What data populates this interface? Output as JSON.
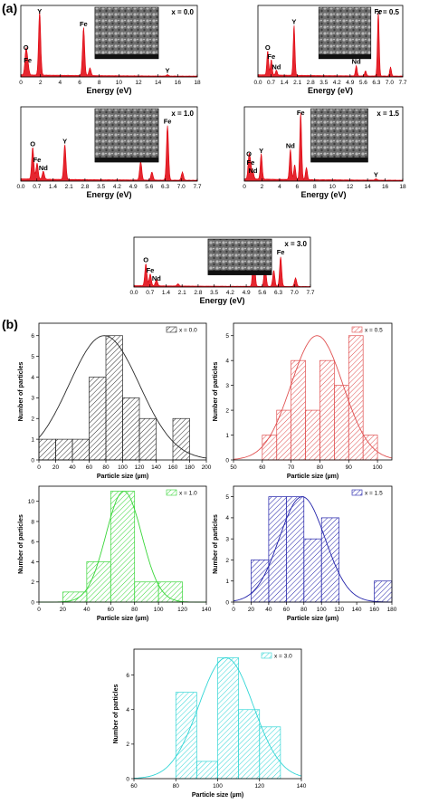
{
  "panel_labels": {
    "a": "(a)",
    "b": "(b)"
  },
  "colors": {
    "edx": "#e0000b",
    "hist": [
      "#2a2a2a",
      "#e05050",
      "#39d639",
      "#2222aa",
      "#33d6d6"
    ]
  },
  "chart_data": [
    {
      "type": "line",
      "panel": "a",
      "legend": "x = 0.0",
      "xlabel": "Energy (eV)",
      "xlim": [
        0,
        18
      ],
      "xticks": [
        0,
        2,
        4,
        6,
        8,
        10,
        12,
        14,
        16,
        18
      ],
      "xticklabels": [
        "0",
        "2",
        "4",
        "6",
        "8",
        "10",
        "12",
        "14",
        "16",
        "18"
      ],
      "peaks": [
        [
          0.52,
          0.38,
          "O"
        ],
        [
          0.71,
          0.18,
          "Fe"
        ],
        [
          1.92,
          1.0,
          "Y"
        ],
        [
          6.4,
          0.75,
          "Fe"
        ],
        [
          7.05,
          0.12,
          ""
        ],
        [
          14.96,
          0.02,
          "Y"
        ]
      ],
      "inset": "SEM micrograph"
    },
    {
      "type": "line",
      "panel": "a",
      "legend": "x = 0.5",
      "xlabel": "Energy (eV)",
      "xlim": [
        0,
        7.7
      ],
      "xticks": [
        0.0,
        0.7,
        1.4,
        2.1,
        2.8,
        3.5,
        4.2,
        4.9,
        5.6,
        6.3,
        7.0,
        7.7
      ],
      "xticklabels": [
        "0.0",
        "0.7",
        "1.4",
        "2.1",
        "2.8",
        "3.5",
        "4.2",
        "4.9",
        "5.6",
        "6.3",
        "7.0",
        "7.7"
      ],
      "peaks": [
        [
          0.52,
          0.38,
          "O"
        ],
        [
          0.71,
          0.24,
          "Fe"
        ],
        [
          0.98,
          0.08,
          "Nd"
        ],
        [
          1.92,
          0.78,
          "Y"
        ],
        [
          5.23,
          0.16,
          "Nd"
        ],
        [
          5.72,
          0.08,
          ""
        ],
        [
          6.4,
          1.0,
          "Fe"
        ],
        [
          7.05,
          0.14,
          ""
        ]
      ],
      "inset": "SEM micrograph"
    },
    {
      "type": "line",
      "panel": "a",
      "legend": "x = 1.0",
      "xlabel": "Energy (eV)",
      "xlim": [
        0,
        7.7
      ],
      "xticks": [
        0.0,
        0.7,
        1.4,
        2.1,
        2.8,
        3.5,
        4.2,
        4.9,
        5.6,
        6.3,
        7.0,
        7.7
      ],
      "xticklabels": [
        "0.0",
        "0.7",
        "1.4",
        "2.1",
        "2.8",
        "3.5",
        "4.2",
        "4.9",
        "5.6",
        "6.3",
        "7.0",
        "7.7"
      ],
      "peaks": [
        [
          0.52,
          0.48,
          "O"
        ],
        [
          0.71,
          0.24,
          "Fe"
        ],
        [
          0.98,
          0.12,
          "Nd"
        ],
        [
          1.92,
          0.52,
          "Y"
        ],
        [
          5.23,
          0.28,
          "Nd"
        ],
        [
          5.72,
          0.12,
          ""
        ],
        [
          6.4,
          0.82,
          "Fe"
        ],
        [
          7.05,
          0.12,
          ""
        ]
      ],
      "inset": "SEM micrograph"
    },
    {
      "type": "line",
      "panel": "a",
      "legend": "x = 1.5",
      "xlabel": "Energy (eV)",
      "xlim": [
        0,
        18
      ],
      "xticks": [
        0,
        2,
        4,
        6,
        8,
        10,
        12,
        14,
        16,
        18
      ],
      "xticklabels": [
        "0",
        "2",
        "4",
        "6",
        "8",
        "10",
        "12",
        "14",
        "16",
        "18"
      ],
      "peaks": [
        [
          0.52,
          0.33,
          "O"
        ],
        [
          0.71,
          0.2,
          "Fe"
        ],
        [
          0.98,
          0.1,
          "Nd"
        ],
        [
          1.92,
          0.38,
          "Y"
        ],
        [
          5.23,
          0.45,
          "Nd"
        ],
        [
          5.72,
          0.22,
          ""
        ],
        [
          6.4,
          1.0,
          "Fe"
        ],
        [
          7.05,
          0.18,
          ""
        ],
        [
          14.96,
          0.02,
          "Y"
        ]
      ],
      "inset": "SEM micrograph"
    },
    {
      "type": "line",
      "panel": "a",
      "legend": "x = 3.0",
      "xlabel": "Energy (eV)",
      "xlim": [
        0,
        7.7
      ],
      "xticks": [
        0.0,
        0.7,
        1.4,
        2.1,
        2.8,
        3.5,
        4.2,
        4.9,
        5.6,
        6.3,
        7.0,
        7.7
      ],
      "xticklabels": [
        "0.0",
        "0.7",
        "1.4",
        "2.1",
        "2.8",
        "3.5",
        "4.2",
        "4.9",
        "5.6",
        "6.3",
        "7.0",
        "7.7"
      ],
      "peaks": [
        [
          0.52,
          0.52,
          "O"
        ],
        [
          0.71,
          0.28,
          "Fe"
        ],
        [
          0.98,
          0.15,
          "Nd"
        ],
        [
          1.92,
          0.05,
          ""
        ],
        [
          5.23,
          0.98,
          "Nd"
        ],
        [
          5.72,
          0.5,
          ""
        ],
        [
          6.1,
          0.38,
          ""
        ],
        [
          6.4,
          0.7,
          "Fe"
        ],
        [
          7.05,
          0.2,
          ""
        ]
      ],
      "inset": "SEM micrograph"
    },
    {
      "type": "bar",
      "panel": "b",
      "legend": "x = 0.0",
      "xlabel": "Particle size (µm)",
      "ylabel": "Number of particles",
      "xlim": [
        0,
        200
      ],
      "ylim": [
        0,
        6.6
      ],
      "xticks": [
        0,
        20,
        40,
        60,
        80,
        100,
        120,
        140,
        160,
        180,
        200
      ],
      "yticks": [
        0,
        1,
        2,
        3,
        4,
        5,
        6
      ],
      "bins": [
        [
          0,
          20,
          1
        ],
        [
          20,
          40,
          1
        ],
        [
          40,
          60,
          1
        ],
        [
          60,
          80,
          4
        ],
        [
          80,
          100,
          6
        ],
        [
          100,
          120,
          3
        ],
        [
          120,
          140,
          2
        ],
        [
          160,
          180,
          2
        ]
      ],
      "fit": {
        "mean": 78,
        "sd": 42,
        "peak": 6.0
      }
    },
    {
      "type": "bar",
      "panel": "b",
      "legend": "x = 0.5",
      "xlabel": "Particle size (µm)",
      "ylabel": "Number of particles",
      "xlim": [
        50,
        105
      ],
      "ylim": [
        0,
        5.5
      ],
      "xticks": [
        50,
        60,
        70,
        80,
        90,
        100
      ],
      "yticks": [
        0,
        1,
        2,
        3,
        4,
        5
      ],
      "bins": [
        [
          60,
          65,
          1
        ],
        [
          65,
          70,
          2
        ],
        [
          70,
          75,
          4
        ],
        [
          75,
          80,
          2
        ],
        [
          80,
          85,
          4
        ],
        [
          85,
          90,
          3
        ],
        [
          90,
          95,
          5
        ],
        [
          95,
          100,
          1
        ]
      ],
      "fit": {
        "mean": 79,
        "sd": 9,
        "peak": 5.0
      }
    },
    {
      "type": "bar",
      "panel": "b",
      "legend": "x = 1.0",
      "xlabel": "Particle size (µm)",
      "ylabel": "Number of particles",
      "xlim": [
        0,
        140
      ],
      "ylim": [
        0,
        11.5
      ],
      "xticks": [
        0,
        20,
        40,
        60,
        80,
        100,
        120,
        140
      ],
      "yticks": [
        0,
        2,
        4,
        6,
        8,
        10
      ],
      "bins": [
        [
          20,
          40,
          1
        ],
        [
          40,
          60,
          4
        ],
        [
          60,
          80,
          11
        ],
        [
          80,
          100,
          2
        ],
        [
          100,
          120,
          2
        ]
      ],
      "fit": {
        "mean": 71,
        "sd": 15,
        "peak": 11.0
      }
    },
    {
      "type": "bar",
      "panel": "b",
      "legend": "x = 1.5",
      "xlabel": "Particle size (µm)",
      "ylabel": "Number of particles",
      "xlim": [
        0,
        180
      ],
      "ylim": [
        0,
        5.5
      ],
      "xticks": [
        0,
        20,
        40,
        60,
        80,
        100,
        120,
        140,
        160,
        180
      ],
      "yticks": [
        0,
        1,
        2,
        3,
        4,
        5
      ],
      "bins": [
        [
          20,
          40,
          2
        ],
        [
          40,
          60,
          5
        ],
        [
          60,
          80,
          5
        ],
        [
          80,
          100,
          3
        ],
        [
          100,
          120,
          4
        ],
        [
          160,
          180,
          1
        ]
      ],
      "fit": {
        "mean": 78,
        "sd": 26,
        "peak": 5.0
      }
    },
    {
      "type": "bar",
      "panel": "b",
      "legend": "x = 3.0",
      "xlabel": "Particle size (µm)",
      "ylabel": "Number of particles",
      "xlim": [
        60,
        140
      ],
      "ylim": [
        0,
        7.5
      ],
      "xticks": [
        60,
        80,
        100,
        120,
        140
      ],
      "yticks": [
        0,
        2,
        4,
        6
      ],
      "bins": [
        [
          80,
          90,
          5
        ],
        [
          90,
          100,
          1
        ],
        [
          100,
          110,
          7
        ],
        [
          110,
          120,
          4
        ],
        [
          120,
          130,
          3
        ]
      ],
      "fit": {
        "mean": 104,
        "sd": 13,
        "peak": 7.0
      }
    }
  ]
}
